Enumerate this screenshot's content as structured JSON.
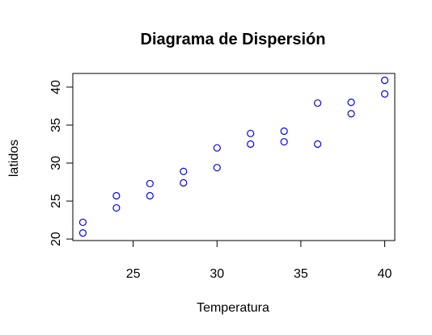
{
  "chart_data": {
    "type": "scatter",
    "title": "Diagrama de Dispersión",
    "xlabel": "Temperatura",
    "ylabel": "latidos",
    "xlim": [
      21.4,
      40.6
    ],
    "ylim": [
      19.8,
      41.8
    ],
    "xticks": [
      25,
      30,
      35,
      40
    ],
    "yticks": [
      20,
      25,
      30,
      35,
      40
    ],
    "xtick_labels": [
      "25",
      "30",
      "35",
      "40"
    ],
    "ytick_labels": [
      "20",
      "25",
      "30",
      "35",
      "40"
    ],
    "grid": false,
    "legend": "none",
    "marker": "open-circle",
    "point_color": "#0000ff",
    "axis_color": "#000000",
    "points": [
      {
        "x": 22,
        "y": 20.8
      },
      {
        "x": 22,
        "y": 22.2
      },
      {
        "x": 24,
        "y": 24.1
      },
      {
        "x": 24,
        "y": 25.7
      },
      {
        "x": 26,
        "y": 25.7
      },
      {
        "x": 26,
        "y": 27.3
      },
      {
        "x": 28,
        "y": 27.4
      },
      {
        "x": 28,
        "y": 28.9
      },
      {
        "x": 30,
        "y": 29.4
      },
      {
        "x": 30,
        "y": 32.0
      },
      {
        "x": 32,
        "y": 32.5
      },
      {
        "x": 32,
        "y": 33.9
      },
      {
        "x": 34,
        "y": 32.8
      },
      {
        "x": 34,
        "y": 34.2
      },
      {
        "x": 36,
        "y": 32.5
      },
      {
        "x": 36,
        "y": 37.9
      },
      {
        "x": 38,
        "y": 36.5
      },
      {
        "x": 38,
        "y": 38.0
      },
      {
        "x": 40,
        "y": 39.1
      },
      {
        "x": 40,
        "y": 40.9
      }
    ]
  }
}
